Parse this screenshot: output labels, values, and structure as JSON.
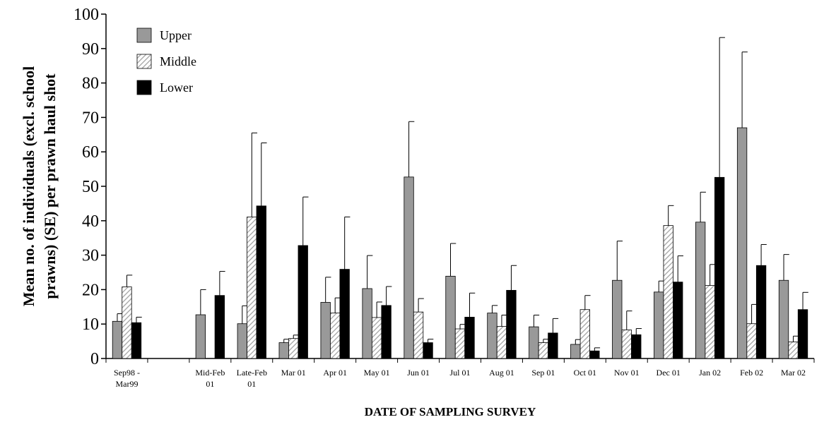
{
  "chart_data": {
    "type": "bar",
    "title": "",
    "ylabel_lines": [
      "Mean no. of individuals (excl. school",
      "prawns) (SE) per prawn haul shot"
    ],
    "xlabel": "DATE OF SAMPLING SURVEY",
    "ylim": [
      0,
      100
    ],
    "yticks": [
      0,
      10,
      20,
      30,
      40,
      50,
      60,
      70,
      80,
      90,
      100
    ],
    "grid": false,
    "legend_position": "top-left",
    "categories": [
      [
        "Sep98 -",
        "Mar99"
      ],
      [
        ""
      ],
      [
        "Mid-Feb",
        "01"
      ],
      [
        "Late-Feb",
        "01"
      ],
      [
        "Mar 01"
      ],
      [
        "Apr 01"
      ],
      [
        "May 01"
      ],
      [
        "Jun 01"
      ],
      [
        "Jul 01"
      ],
      [
        "Aug 01"
      ],
      [
        "Sep 01"
      ],
      [
        "Oct 01"
      ],
      [
        "Nov 01"
      ],
      [
        "Dec 01"
      ],
      [
        "Jan 02"
      ],
      [
        "Feb 02"
      ],
      [
        "Mar 02"
      ]
    ],
    "series": [
      {
        "name": "Upper",
        "style": "gray",
        "values": [
          10.8,
          null,
          12.7,
          10.1,
          4.6,
          16.3,
          20.3,
          52.7,
          23.9,
          13.2,
          9.2,
          4.1,
          22.7,
          19.3,
          39.6,
          67.0,
          22.7
        ],
        "errors": [
          2.2,
          null,
          7.3,
          5.2,
          1.0,
          7.3,
          9.6,
          16.1,
          9.5,
          2.2,
          3.4,
          1.4,
          11.4,
          3.2,
          8.7,
          22.0,
          7.5
        ]
      },
      {
        "name": "Middle",
        "style": "hatched",
        "values": [
          20.8,
          null,
          null,
          41.1,
          5.8,
          13.2,
          11.9,
          13.5,
          8.6,
          9.3,
          4.6,
          14.2,
          8.3,
          38.6,
          21.2,
          10.1,
          4.8
        ],
        "errors": [
          3.4,
          null,
          null,
          24.4,
          1.0,
          4.4,
          4.5,
          3.9,
          1.3,
          3.3,
          1.0,
          4.1,
          5.5,
          5.8,
          6.1,
          5.6,
          1.7
        ]
      },
      {
        "name": "Lower",
        "style": "black",
        "values": [
          10.4,
          null,
          18.3,
          44.3,
          32.8,
          25.9,
          15.4,
          4.6,
          12.0,
          19.8,
          7.4,
          2.2,
          6.9,
          22.2,
          52.6,
          27.0,
          14.2
        ],
        "errors": [
          1.6,
          null,
          7.0,
          18.3,
          14.1,
          15.2,
          5.5,
          1.0,
          7.0,
          7.2,
          4.2,
          0.9,
          1.8,
          7.6,
          40.6,
          6.1,
          5.0
        ]
      }
    ],
    "colors": {
      "upper": "#999999",
      "middle_stripe": "#b0b0b0",
      "lower": "#000000",
      "axis": "#000000"
    }
  }
}
